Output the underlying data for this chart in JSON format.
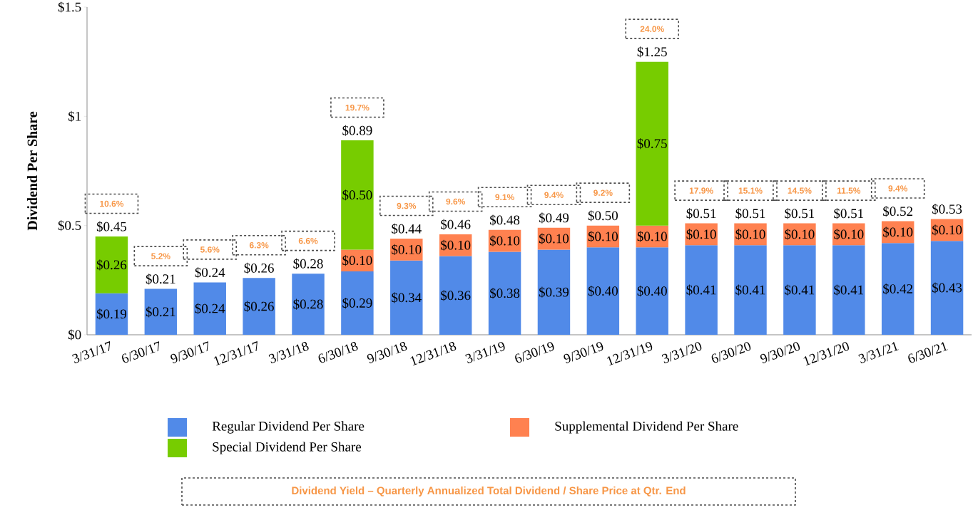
{
  "chart_data": {
    "type": "bar",
    "ylabel": "Dividend Per Share",
    "categories": [
      "3/31/17",
      "6/30/17",
      "9/30/17",
      "12/31/17",
      "3/31/18",
      "6/30/18",
      "9/30/18",
      "12/31/18",
      "3/31/19",
      "6/30/19",
      "9/30/19",
      "12/31/19",
      "3/31/20",
      "6/30/20",
      "9/30/20",
      "12/31/20",
      "3/31/21",
      "6/30/21"
    ],
    "stacked": true,
    "series": [
      {
        "name": "Regular Dividend Per Share",
        "color": "#518ae8",
        "values": [
          0.19,
          0.21,
          0.24,
          0.26,
          0.28,
          0.29,
          0.34,
          0.36,
          0.38,
          0.39,
          0.4,
          0.4,
          0.41,
          0.41,
          0.41,
          0.41,
          0.42,
          0.43
        ],
        "value_labels": [
          "$0.19",
          "$0.21",
          "$0.24",
          "$0.26",
          "$0.28",
          "$0.29",
          "$0.34",
          "$0.36",
          "$0.38",
          "$0.39",
          "$0.40",
          "$0.40",
          "$0.41",
          "$0.41",
          "$0.41",
          "$0.41",
          "$0.42",
          "$0.43"
        ]
      },
      {
        "name": "Supplemental Dividend Per Share",
        "color": "#ff8150",
        "values": [
          null,
          null,
          null,
          null,
          null,
          0.1,
          0.1,
          0.1,
          0.1,
          0.1,
          0.1,
          0.1,
          0.1,
          0.1,
          0.1,
          0.1,
          0.1,
          0.1
        ],
        "value_labels": [
          null,
          null,
          null,
          null,
          null,
          "$0.10",
          "$0.10",
          "$0.10",
          "$0.10",
          "$0.10",
          "$0.10",
          "$0.10",
          "$0.10",
          "$0.10",
          "$0.10",
          "$0.10",
          "$0.10",
          "$0.10"
        ]
      },
      {
        "name": "Special Dividend Per Share",
        "color": "#77cc00",
        "values": [
          0.26,
          null,
          null,
          null,
          null,
          0.5,
          null,
          null,
          null,
          null,
          null,
          0.75,
          null,
          null,
          null,
          null,
          null,
          null
        ],
        "value_labels": [
          "$0.26",
          null,
          null,
          null,
          null,
          "$0.50",
          null,
          null,
          null,
          null,
          null,
          "$0.75",
          null,
          null,
          null,
          null,
          null,
          null
        ]
      }
    ],
    "totals": [
      "$0.45",
      "$0.21",
      "$0.24",
      "$0.26",
      "$0.28",
      "$0.89",
      "$0.44",
      "$0.46",
      "$0.48",
      "$0.49",
      "$0.50",
      "$1.25",
      "$0.51",
      "$0.51",
      "$0.51",
      "$0.51",
      "$0.52",
      "$0.53"
    ],
    "ylim": [
      0,
      1.5
    ],
    "yticks": [
      {
        "value": 0,
        "label": "$0"
      },
      {
        "value": 0.5,
        "label": "$0.5"
      },
      {
        "value": 1,
        "label": "$1"
      },
      {
        "value": 1.5,
        "label": "$1.5"
      }
    ],
    "legend": "bottom",
    "annotations": [
      "Dividend Yield – Quarterly Annualized Total Dividend / Share Price at Qtr. End",
      "10.6%",
      "5.2%",
      "5.6%",
      "6.3%",
      "6.6%",
      "19.7%",
      "9.3%",
      "9.6%",
      "9.1%",
      "9.4%",
      "9.2%",
      "24.0%",
      "17.9%",
      "15.1%",
      "14.5%",
      "11.5%",
      "9.4%"
    ]
  }
}
